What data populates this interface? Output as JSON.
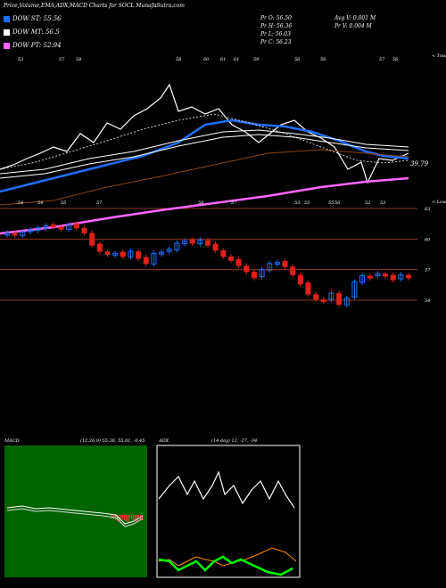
{
  "header": {
    "title": "Price,Volume,EMA,ADX,MACD Charts for SOCL MunafaSutra.com"
  },
  "legend": [
    {
      "label": "DOW ST: 55.56",
      "color": "#1f6fff"
    },
    {
      "label": "DOW MT: 56.5",
      "color": "#ffffff"
    },
    {
      "label": "DOW PT: 52.94",
      "color": "#ff66ff"
    }
  ],
  "stats": {
    "pr_o": "Pr O: 56.50",
    "pr_h": "Pr H: 56.36",
    "pr_l": "Pr L: 56.03",
    "pr_c": "Pr C: 56.23",
    "avg_v": "Avg V: 0.001 M",
    "pr_v": "Pr V: 0.004 M"
  },
  "colors": {
    "bull": "#1f6fff",
    "bear": "#e0201a",
    "ema_st": "#1f6fff",
    "ema_pt": "#ff66ff",
    "level_line": "#8b3a1a",
    "macd_bg": "#006400",
    "adx_plus": "#00ff00",
    "adx_minus": "#ff8c00"
  },
  "chart_data": [
    {
      "type": "candlestick",
      "title": "",
      "price_axis_labels": [
        "63",
        "60",
        "57",
        "54"
      ],
      "last_price_label": "39.79",
      "top_right_label": "< Topa",
      "lower_right_label": "< Lowera",
      "top_tick_labels": [
        "53",
        "57",
        "58",
        "58",
        "60",
        "61",
        "61",
        "59",
        "56",
        "56",
        "57",
        "56"
      ],
      "lower_tick_labels": [
        "54",
        "54",
        "55",
        "57",
        "58",
        "57",
        "53",
        "55",
        "55",
        "56",
        "52",
        "53"
      ],
      "closes": [
        60.6,
        60.4,
        60.7,
        60.9,
        61.1,
        61.3,
        61.2,
        61.0,
        61.4,
        61.1,
        60.6,
        59.4,
        58.8,
        58.5,
        58.6,
        58.3,
        58.8,
        58.1,
        57.6,
        58.6,
        58.7,
        59.0,
        59.6,
        59.8,
        59.6,
        59.9,
        59.4,
        58.9,
        58.3,
        57.9,
        57.4,
        56.8,
        56.2,
        57.0,
        57.6,
        57.7,
        57.3,
        56.5,
        55.6,
        54.6,
        54.1,
        54.0,
        54.7,
        53.6,
        54.2,
        55.8,
        56.4,
        56.3,
        56.6,
        56.5,
        56.0,
        56.5,
        56.2
      ]
    },
    {
      "type": "line",
      "title": "MACD",
      "params": "(12,26,9) 55.36, 55.81, -0.45"
    },
    {
      "type": "line",
      "title": "ADX",
      "params": "(14 day) 12, -27, -34"
    }
  ]
}
